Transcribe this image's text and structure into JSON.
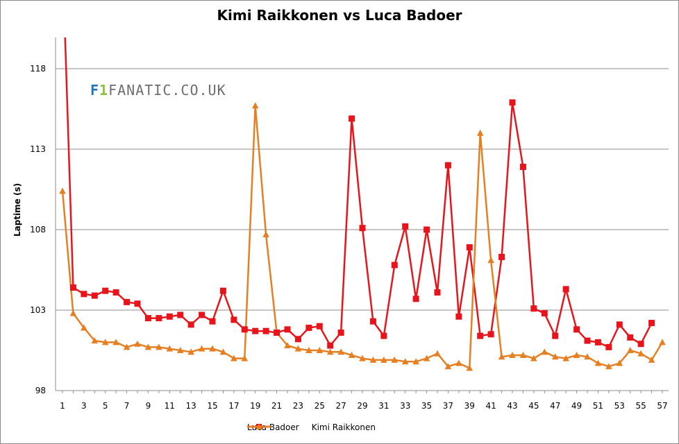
{
  "chart_data": {
    "type": "line",
    "title": "Kimi Raikkonen vs Luca Badoer",
    "xlabel": "",
    "ylabel": "Laptime (s)",
    "xlim": [
      1,
      57
    ],
    "ylim": [
      98,
      120
    ],
    "yticks": [
      98,
      103,
      108,
      113,
      118
    ],
    "xticks": [
      1,
      3,
      5,
      7,
      9,
      11,
      13,
      15,
      17,
      19,
      21,
      23,
      25,
      27,
      29,
      31,
      33,
      35,
      37,
      39,
      41,
      43,
      45,
      47,
      49,
      51,
      53,
      55,
      57
    ],
    "grid": "horizontal",
    "legend_position": "bottom",
    "watermark": "F1FANATIC.CO.UK",
    "series": [
      {
        "name": "Luca Badoer",
        "color": "#e8141b",
        "marker": "square",
        "values": [
          125.0,
          104.4,
          104.0,
          103.9,
          104.2,
          104.1,
          103.5,
          103.4,
          102.5,
          102.5,
          102.6,
          102.7,
          102.1,
          102.7,
          102.3,
          104.2,
          102.4,
          101.8,
          101.7,
          101.7,
          101.6,
          101.8,
          101.2,
          101.9,
          102.0,
          100.8,
          101.6,
          114.9,
          108.1,
          102.3,
          101.4,
          105.8,
          108.2,
          103.7,
          108.0,
          104.1,
          112.0,
          102.6,
          106.9,
          101.4,
          101.5,
          106.3,
          115.9,
          111.9,
          103.1,
          102.8,
          101.4,
          104.3,
          101.8,
          101.1,
          101.0,
          100.7,
          102.1,
          101.3,
          100.9,
          102.2
        ],
        "x": [
          1,
          2,
          3,
          4,
          5,
          6,
          7,
          8,
          9,
          10,
          11,
          12,
          13,
          14,
          15,
          16,
          17,
          18,
          19,
          20,
          21,
          22,
          23,
          24,
          25,
          26,
          27,
          28,
          29,
          30,
          31,
          32,
          33,
          34,
          35,
          36,
          37,
          38,
          39,
          40,
          41,
          42,
          43,
          44,
          45,
          46,
          47,
          48,
          49,
          50,
          51,
          52,
          53,
          54,
          55,
          56
        ]
      },
      {
        "name": "Kimi Raikkonen",
        "color": "#e67e22",
        "marker": "triangle",
        "values": [
          110.4,
          102.8,
          101.9,
          101.1,
          101.0,
          101.0,
          100.7,
          100.9,
          100.7,
          100.7,
          100.6,
          100.5,
          100.4,
          100.6,
          100.6,
          100.4,
          100.0,
          100.0,
          115.7,
          107.7,
          101.6,
          100.8,
          100.6,
          100.5,
          100.5,
          100.4,
          100.4,
          100.2,
          100.0,
          99.9,
          99.9,
          99.9,
          99.8,
          99.8,
          100.0,
          100.3,
          99.5,
          99.7,
          99.4,
          114.0,
          106.1,
          100.1,
          100.2,
          100.2,
          100.0,
          100.4,
          100.1,
          100.0,
          100.2,
          100.1,
          99.7,
          99.5,
          99.7,
          100.5,
          100.3,
          99.9,
          101.0
        ],
        "x": [
          1,
          2,
          3,
          4,
          5,
          6,
          7,
          8,
          9,
          10,
          11,
          12,
          13,
          14,
          15,
          16,
          17,
          18,
          19,
          20,
          21,
          22,
          23,
          24,
          25,
          26,
          27,
          28,
          29,
          30,
          31,
          32,
          33,
          34,
          35,
          36,
          37,
          38,
          39,
          40,
          41,
          42,
          43,
          44,
          45,
          46,
          47,
          48,
          49,
          50,
          51,
          52,
          53,
          54,
          55,
          56,
          57
        ]
      }
    ]
  }
}
